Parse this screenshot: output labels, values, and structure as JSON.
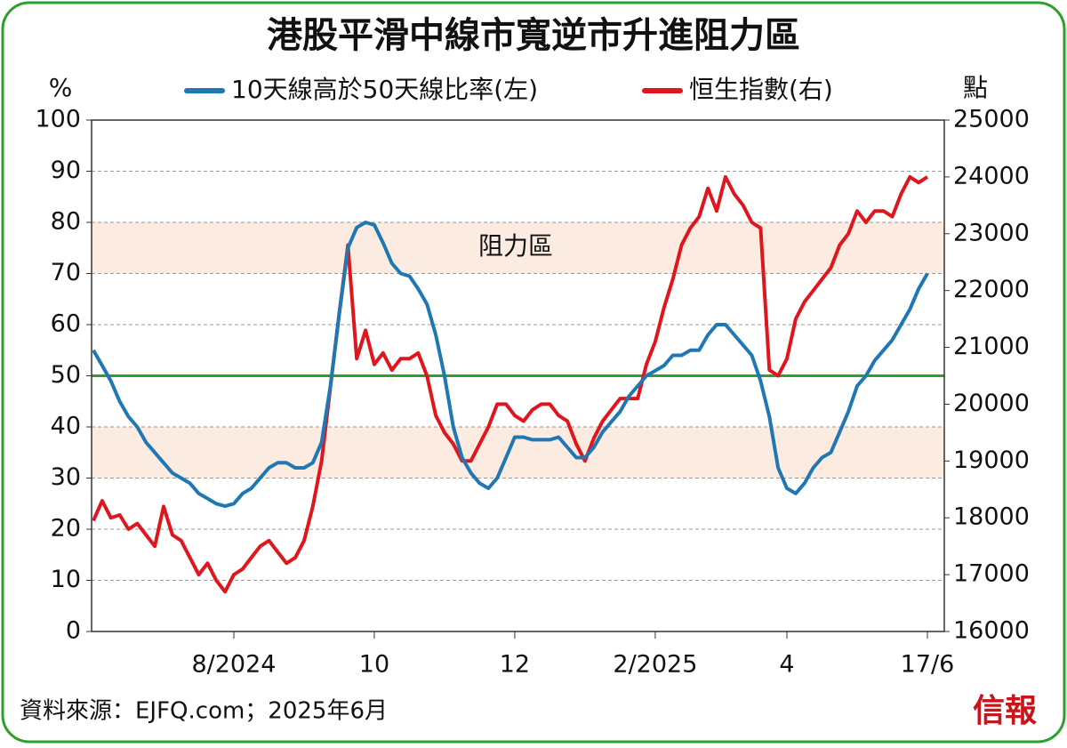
{
  "chart_data": {
    "type": "line",
    "title": "港股平滑中線市寬逆市升進阻力區",
    "y_unit_label": "%",
    "y2_unit_label": "點",
    "annotation": "阻力區",
    "source": "資料來源：EJFQ.com；2025年6月",
    "logo": "信報",
    "categories": [
      null,
      null,
      null,
      null,
      null,
      null,
      null,
      null,
      null,
      null,
      null,
      null,
      null,
      null,
      null,
      null,
      "8/2024",
      null,
      null,
      null,
      null,
      null,
      null,
      null,
      null,
      null,
      null,
      null,
      null,
      null,
      null,
      null,
      "10",
      null,
      null,
      null,
      null,
      null,
      null,
      null,
      null,
      null,
      null,
      null,
      null,
      null,
      null,
      null,
      "12",
      null,
      null,
      null,
      null,
      null,
      null,
      null,
      null,
      null,
      null,
      null,
      null,
      null,
      null,
      null,
      "2/2025",
      null,
      null,
      null,
      null,
      null,
      null,
      null,
      null,
      null,
      null,
      null,
      null,
      null,
      null,
      "4",
      null,
      null,
      null,
      null,
      null,
      null,
      null,
      null,
      null,
      null,
      null,
      null,
      null,
      null,
      null,
      "17/6"
    ],
    "series": [
      {
        "name": "10天線高於50天線比率(左)",
        "color": "#1f77b4",
        "values": [
          55,
          52,
          49,
          45,
          42,
          40,
          37,
          35,
          33,
          31,
          30,
          29,
          27,
          26,
          25,
          24.5,
          25,
          27,
          28,
          30,
          32,
          33,
          33,
          32,
          32,
          33,
          37,
          48,
          62,
          75,
          79,
          80,
          79.5,
          76,
          72,
          70,
          69.5,
          67,
          64,
          58,
          50,
          40,
          34,
          31,
          29,
          28,
          30,
          34,
          38,
          38,
          37.5,
          37.5,
          37.5,
          38,
          36,
          34,
          34,
          36,
          39,
          41,
          43,
          46,
          48,
          50,
          51,
          52,
          54,
          54,
          55,
          55,
          58,
          60,
          60,
          58,
          56,
          54,
          49,
          42,
          32,
          28,
          27,
          29,
          32,
          34,
          35,
          39,
          43,
          48,
          50,
          53,
          55,
          57,
          60,
          63,
          67,
          70
        ]
      },
      {
        "name": "恒生指數(右)",
        "color": "#e0161e",
        "axis": "y2",
        "values": [
          17950,
          18300,
          18000,
          18050,
          17800,
          17900,
          17700,
          17500,
          18200,
          17700,
          17600,
          17300,
          17000,
          17200,
          16900,
          16700,
          17000,
          17100,
          17300,
          17500,
          17600,
          17400,
          17200,
          17300,
          17600,
          18200,
          19000,
          20300,
          21600,
          22800,
          20800,
          21300,
          20700,
          20900,
          20600,
          20800,
          20800,
          20900,
          20500,
          19800,
          19500,
          19300,
          19000,
          19000,
          19300,
          19600,
          20000,
          20000,
          19800,
          19700,
          19900,
          20000,
          20000,
          19800,
          19700,
          19300,
          19000,
          19400,
          19700,
          19900,
          20100,
          20100,
          20100,
          20700,
          21100,
          21700,
          22200,
          22800,
          23100,
          23300,
          23800,
          23400,
          24000,
          23700,
          23500,
          23200,
          23100,
          20600,
          20500,
          20800,
          21500,
          21800,
          22000,
          22200,
          22400,
          22800,
          23000,
          23400,
          23200,
          23400,
          23400,
          23300,
          23700,
          24000,
          23900,
          24000
        ]
      }
    ],
    "ylim": [
      0,
      100
    ],
    "yticks": [
      0,
      10,
      20,
      30,
      40,
      50,
      60,
      70,
      80,
      90,
      100
    ],
    "y2lim": [
      16000,
      25000
    ],
    "y2ticks": [
      16000,
      17000,
      18000,
      19000,
      20000,
      21000,
      22000,
      23000,
      24000,
      25000
    ],
    "bands": [
      [
        30,
        40
      ],
      [
        70,
        80
      ]
    ],
    "band_color": "#fcebe0",
    "reference_line": {
      "value": 50,
      "color": "#2ca02c"
    },
    "grid": true
  }
}
